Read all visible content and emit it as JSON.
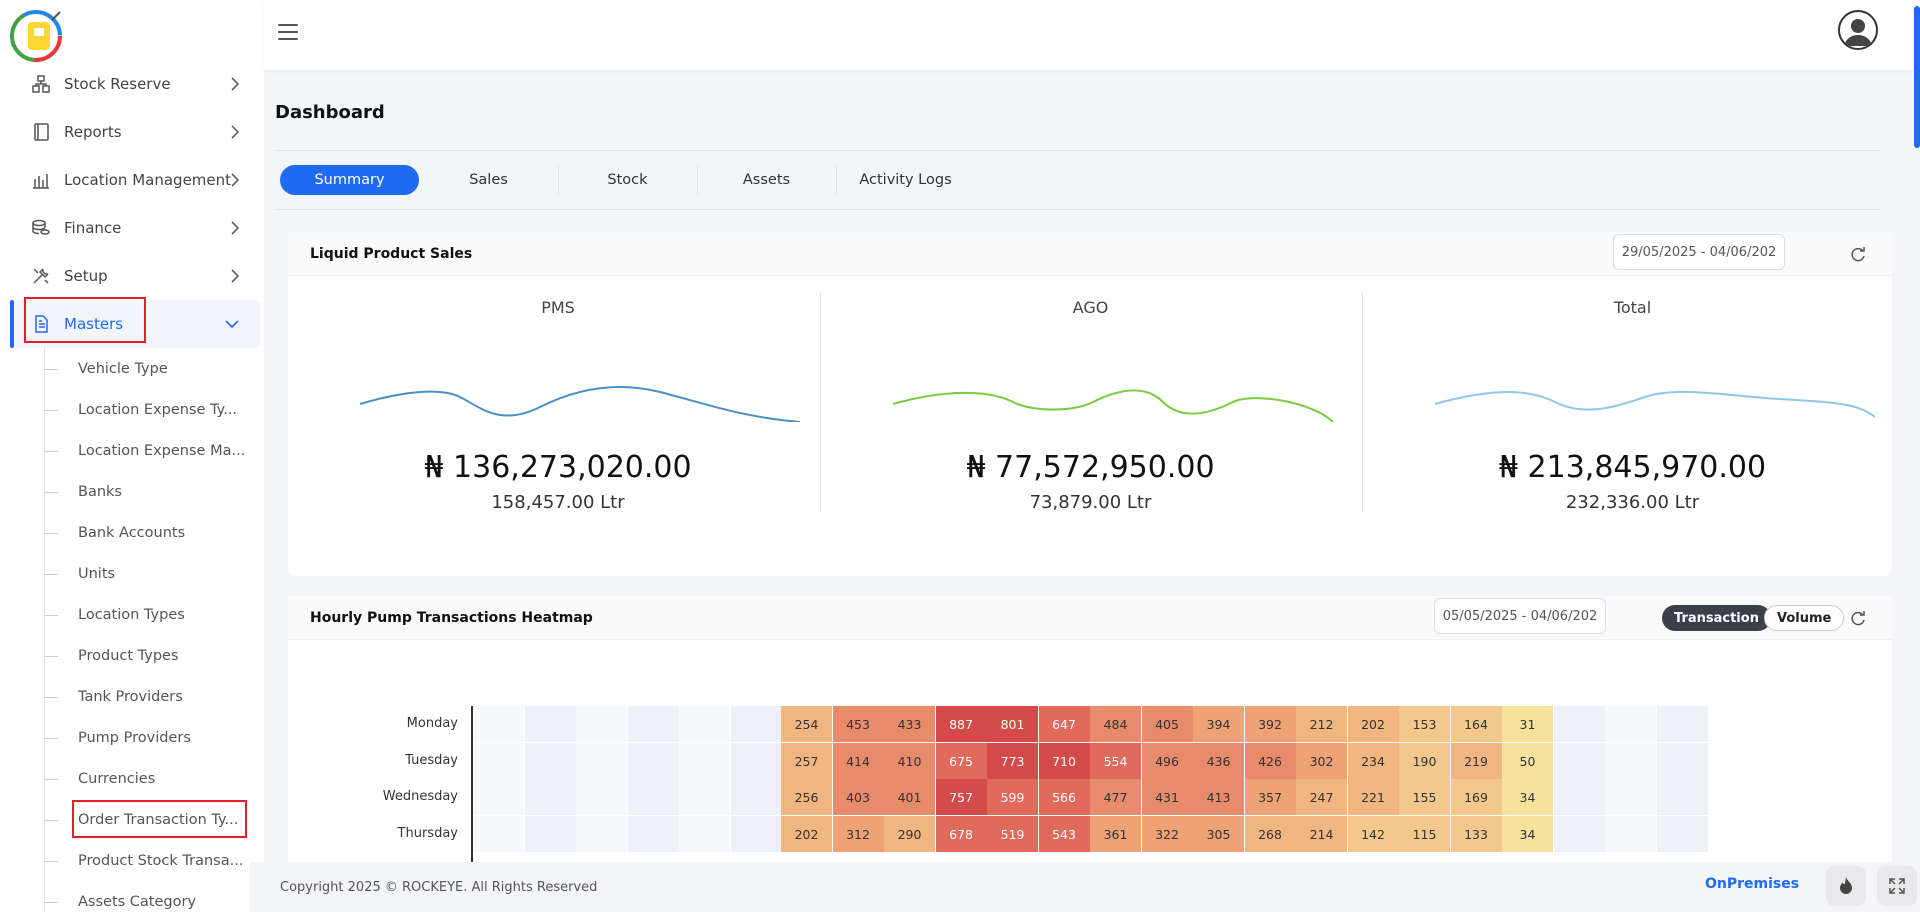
{
  "sidebar": {
    "items": [
      {
        "label": "Stock Reserve",
        "icon": "boxes-icon"
      },
      {
        "label": "Reports",
        "icon": "book-icon"
      },
      {
        "label": "Location Management",
        "icon": "building-chart-icon"
      },
      {
        "label": "Finance",
        "icon": "coins-icon"
      },
      {
        "label": "Setup",
        "icon": "tools-icon"
      },
      {
        "label": "Masters",
        "icon": "document-icon"
      }
    ],
    "sub_items": [
      "Vehicle Type",
      "Location Expense Ty...",
      "Location Expense Ma...",
      "Banks",
      "Bank Accounts",
      "Units",
      "Location Types",
      "Product Types",
      "Tank Providers",
      "Pump Providers",
      "Currencies",
      "Order Transaction Ty...",
      "Product Stock Transa...",
      "Assets Category"
    ]
  },
  "page": {
    "title": "Dashboard"
  },
  "tabs": [
    "Summary",
    "Sales",
    "Stock",
    "Assets",
    "Activity Logs"
  ],
  "liquid_sales": {
    "title": "Liquid Product Sales",
    "date_range": "29/05/2025 - 04/06/202",
    "kpis": [
      {
        "label": "PMS",
        "amount": "₦ 136,273,020.00",
        "volume": "158,457.00 Ltr",
        "color": "#4a90c8"
      },
      {
        "label": "AGO",
        "amount": "₦ 77,572,950.00",
        "volume": "73,879.00 Ltr",
        "color": "#7acb3e"
      },
      {
        "label": "Total",
        "amount": "₦ 213,845,970.00",
        "volume": "232,336.00 Ltr",
        "color": "#8fc7e8"
      }
    ]
  },
  "heatmap_card": {
    "title": "Hourly Pump Transactions Heatmap",
    "date_range": "05/05/2025 - 04/06/202",
    "toggle_on": "Transaction",
    "toggle_off": "Volume",
    "days": [
      "Monday",
      "Tuesday",
      "Wednesday",
      "Thursday"
    ],
    "values": [
      [
        254,
        453,
        433,
        887,
        801,
        647,
        484,
        405,
        394,
        392,
        212,
        202,
        153,
        164,
        31
      ],
      [
        257,
        414,
        410,
        675,
        773,
        710,
        554,
        496,
        436,
        426,
        302,
        234,
        190,
        219,
        50
      ],
      [
        256,
        403,
        401,
        757,
        599,
        566,
        477,
        431,
        413,
        357,
        247,
        221,
        155,
        169,
        34
      ],
      [
        202,
        312,
        290,
        678,
        519,
        543,
        361,
        322,
        305,
        268,
        214,
        142,
        115,
        133,
        34
      ]
    ]
  },
  "footer": {
    "copyright": "Copyright 2025 © ROCKEYE. All Rights Reserved",
    "mode": "OnPremises"
  }
}
